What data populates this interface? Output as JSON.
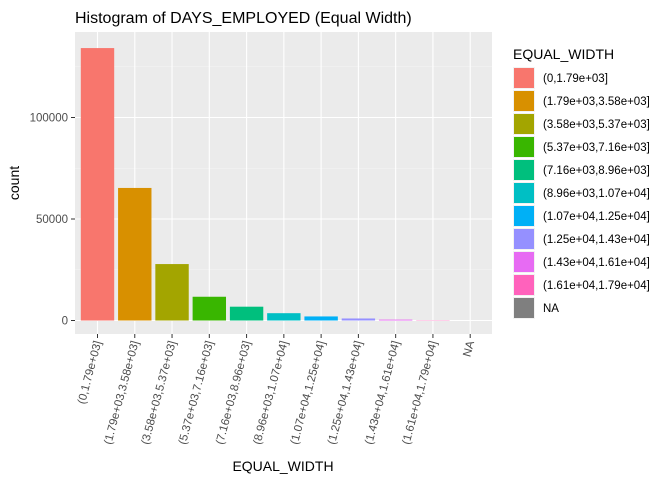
{
  "chart_data": {
    "type": "bar",
    "title": "Histogram of DAYS_EMPLOYED (Equal Width)",
    "xlabel": "EQUAL_WIDTH",
    "ylabel": "count",
    "ylim": [
      0,
      140000
    ],
    "yticks": [
      0,
      50000,
      100000
    ],
    "ytick_labels": [
      "0",
      "50000",
      "100000"
    ],
    "grid": true,
    "legend_position": "right",
    "legend_title": "EQUAL_WIDTH",
    "categories": [
      "(0,1.79e+03]",
      "(1.79e+03,3.58e+03]",
      "(3.58e+03,5.37e+03]",
      "(5.37e+03,7.16e+03]",
      "(7.16e+03,8.96e+03]",
      "(8.96e+03,1.07e+04]",
      "(1.07e+04,1.25e+04]",
      "(1.25e+04,1.43e+04]",
      "(1.43e+04,1.61e+04]",
      "(1.61e+04,1.79e+04]",
      "NA"
    ],
    "values": [
      134200,
      65300,
      27800,
      11700,
      6800,
      3600,
      2000,
      1000,
      450,
      150,
      0
    ],
    "colors": [
      "#F8766D",
      "#D89000",
      "#A3A500",
      "#39B600",
      "#00BF7D",
      "#00BFC4",
      "#00B0F6",
      "#9590FF",
      "#E76BF3",
      "#FF62BC",
      "#7F7F7F"
    ]
  }
}
